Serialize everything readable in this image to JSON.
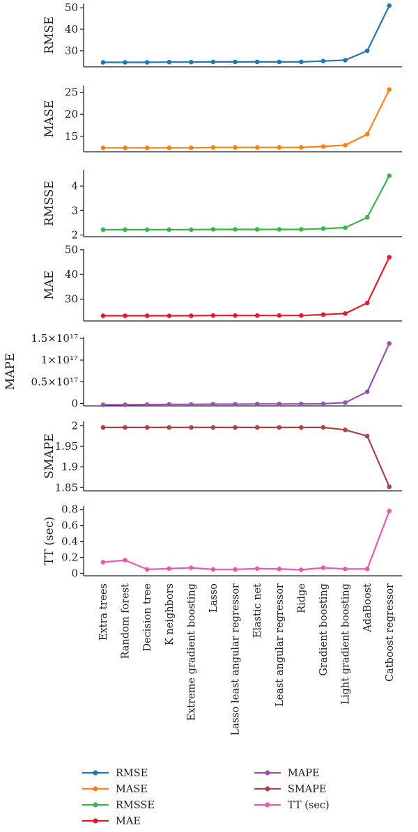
{
  "chart_data": {
    "type": "line",
    "categories": [
      "Extra trees",
      "Random forest",
      "Decision tree",
      "K neighbors",
      "Extreme gradient boosting",
      "Lasso",
      "Lasso least angular regressor",
      "Elastic net",
      "Least angular regressor",
      "Ridge",
      "Gradient boosting",
      "Light gradient boosting",
      "AdaBoost",
      "Catboost regressor"
    ],
    "legend_position": "bottom",
    "grid": false,
    "legend": [
      {
        "name": "RMSE",
        "color": "#1f77b4"
      },
      {
        "name": "MAPE",
        "color": "#9b4fb0"
      },
      {
        "name": "MASE",
        "color": "#ff7f0e"
      },
      {
        "name": "SMAPE",
        "color": "#a64447"
      },
      {
        "name": "RMSSE",
        "color": "#3cb44b"
      },
      {
        "name": "TT (sec)",
        "color": "#e85aad"
      },
      {
        "name": "MAE",
        "color": "#e6192b"
      }
    ],
    "panels": [
      {
        "name": "RMSE",
        "ylabel": "RMSE",
        "color": "#1f77b4",
        "ylim": [
          22.5,
          52
        ],
        "ticks": [
          30,
          40,
          50
        ],
        "tick_labels": [
          "30",
          "40",
          "50"
        ],
        "values": [
          24.6,
          24.6,
          24.6,
          24.7,
          24.7,
          24.8,
          24.8,
          24.8,
          24.8,
          24.8,
          25.2,
          25.6,
          30.0,
          51.0
        ]
      },
      {
        "name": "MASE",
        "ylabel": "MASE",
        "color": "#ff7f0e",
        "ylim": [
          11.5,
          26.5
        ],
        "ticks": [
          15,
          20,
          25
        ],
        "tick_labels": [
          "15",
          "20",
          "25"
        ],
        "values": [
          12.4,
          12.4,
          12.4,
          12.4,
          12.4,
          12.5,
          12.5,
          12.5,
          12.5,
          12.5,
          12.7,
          13.0,
          15.5,
          25.6
        ]
      },
      {
        "name": "RMSSE",
        "ylabel": "RMSSE",
        "color": "#3cb44b",
        "ylim": [
          1.93,
          4.66
        ],
        "ticks": [
          2,
          3,
          4
        ],
        "tick_labels": [
          "2",
          "3",
          "4"
        ],
        "values": [
          2.22,
          2.22,
          2.22,
          2.22,
          2.22,
          2.23,
          2.23,
          2.23,
          2.23,
          2.23,
          2.26,
          2.3,
          2.72,
          4.42
        ]
      },
      {
        "name": "MAE",
        "ylabel": "MAE",
        "color": "#e6192b",
        "ylim": [
          21.2,
          50.2
        ],
        "ticks": [
          30,
          40,
          50
        ],
        "tick_labels": [
          "30",
          "40",
          "50"
        ],
        "values": [
          23.3,
          23.3,
          23.3,
          23.3,
          23.3,
          23.4,
          23.4,
          23.4,
          23.4,
          23.4,
          23.8,
          24.2,
          28.5,
          47.0
        ]
      },
      {
        "name": "MAPE",
        "ylabel": "MAPE",
        "color": "#9b4fb0",
        "ylim": [
          -5500000000000000.0,
          1.53e+17
        ],
        "ticks": [
          0,
          5e+16,
          1e+17,
          1.5e+17
        ],
        "tick_labels": [
          "0",
          "0.5×10¹⁷",
          "1×10¹⁷",
          "1.5×10¹⁷"
        ],
        "values": [
          -3000000000000000.0,
          -3000000000000000.0,
          -2500000000000000.0,
          -2000000000000000.0,
          -2000000000000000.0,
          -1500000000000000.0,
          -1500000000000000.0,
          -1000000000000000.0,
          -1000000000000000.0,
          -1000000000000000.0,
          -500000000000000.0,
          2000000000000000.0,
          2.7e+16,
          1.38e+17
        ]
      },
      {
        "name": "SMAPE",
        "ylabel": "SMAPE",
        "color": "#a64447",
        "ylim": [
          1.842,
          2.011
        ],
        "ticks": [
          1.85,
          1.9,
          1.95,
          2
        ],
        "tick_labels": [
          "1.85",
          "1.9",
          "1.95",
          "2"
        ],
        "values": [
          1.996,
          1.996,
          1.996,
          1.996,
          1.996,
          1.996,
          1.996,
          1.996,
          1.996,
          1.996,
          1.996,
          1.99,
          1.975,
          1.852
        ]
      },
      {
        "name": "TT (sec)",
        "ylabel": "TT (sec)",
        "color": "#e85aad",
        "ylim": [
          -0.03,
          0.84
        ],
        "ticks": [
          0,
          0.2,
          0.4,
          0.6,
          0.8
        ],
        "tick_labels": [
          "0",
          "0.2",
          "0.4",
          "0.6",
          "0.8"
        ],
        "values": [
          0.14,
          0.165,
          0.05,
          0.06,
          0.07,
          0.05,
          0.05,
          0.06,
          0.055,
          0.045,
          0.07,
          0.055,
          0.055,
          0.78
        ]
      }
    ]
  }
}
